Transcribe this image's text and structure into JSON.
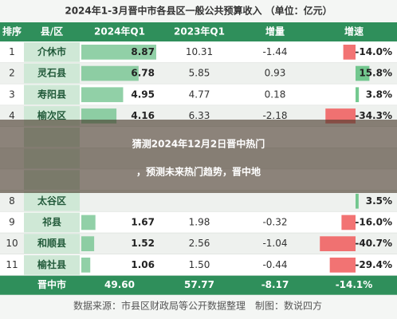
{
  "header": {
    "title": "2024年1-3月晋中市各县区一般公共预算收入 （单位：亿元）"
  },
  "table": {
    "columns": [
      "排序",
      "县/区",
      "2024年Q1",
      "2023年Q1",
      "增量",
      "增速"
    ],
    "rows": [
      {
        "rank": "1",
        "name": "介休市",
        "q2024": "8.87",
        "q2023": "10.31",
        "delta": "-1.44",
        "growth": -14.0,
        "growth_label": "-14.0%"
      },
      {
        "rank": "2",
        "name": "灵石县",
        "q2024": "6.78",
        "q2023": "5.85",
        "delta": "0.93",
        "growth": 15.8,
        "growth_label": "15.8%"
      },
      {
        "rank": "3",
        "name": "寿阳县",
        "q2024": "4.95",
        "q2023": "4.77",
        "delta": "0.18",
        "growth": 3.8,
        "growth_label": "3.8%"
      },
      {
        "rank": "4",
        "name": "榆次区",
        "q2024": "4.16",
        "q2023": "6.33",
        "delta": "-2.18",
        "growth": -34.3,
        "growth_label": "-34.3%"
      },
      {
        "rank": null,
        "name": null,
        "q2024": null,
        "q2023": null,
        "delta": null,
        "growth": null,
        "growth_label": null
      },
      {
        "rank": null,
        "name": null,
        "q2024": null,
        "q2023": null,
        "delta": null,
        "growth": null,
        "growth_label": null
      },
      {
        "rank": null,
        "name": null,
        "q2024": null,
        "q2023": null,
        "delta": null,
        "growth": null,
        "growth_label": null
      },
      {
        "rank": "8",
        "name": "太谷区",
        "q2024": null,
        "q2023": null,
        "delta": null,
        "growth": 3.5,
        "growth_label": "3.5%"
      },
      {
        "rank": "9",
        "name": "祁县",
        "q2024": "1.67",
        "q2023": "1.98",
        "delta": "-0.32",
        "growth": -16.0,
        "growth_label": "-16.0%"
      },
      {
        "rank": "10",
        "name": "和顺县",
        "q2024": "1.52",
        "q2023": "2.56",
        "delta": "-1.04",
        "growth": -40.7,
        "growth_label": "-40.7%"
      },
      {
        "rank": "11",
        "name": "榆社县",
        "q2024": "1.06",
        "q2023": "1.50",
        "delta": "-0.44",
        "growth": -29.4,
        "growth_label": "-29.4%"
      }
    ],
    "total": {
      "name": "晋中市",
      "q2024": "49.60",
      "q2023": "57.77",
      "delta": "-8.17",
      "growth_label": "-14.1%"
    }
  },
  "footer": {
    "source": "数据来源：市县区财政局等公开数据整理",
    "author": "制图：数说四方"
  },
  "banner": {
    "line1": "猜测2024年12月2日晋中热门",
    "line2": "，预测未来热门趋势，晋中地"
  }
}
